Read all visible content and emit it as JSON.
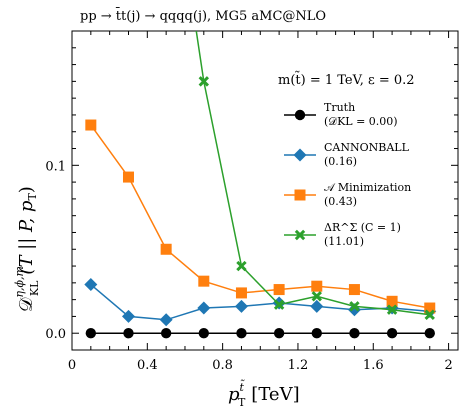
{
  "chart_data": {
    "type": "line",
    "title": "pp → t̄t(j) → qqqq(j), MG5 aMC@NLO",
    "annotation": "m(t̃) = 1 TeV, ε = 0.2",
    "xlabel_main": "p",
    "xlabel_sup": "t̃",
    "xlabel_sub": "T",
    "xlabel_unit": "[TeV]",
    "ylabel_main": "𝒟",
    "ylabel_sup": "η,ϕ,m",
    "ylabel_sub": "KL",
    "ylabel_rest": "(T || P, p",
    "ylabel_rest_sub": "T",
    "ylabel_close": ")",
    "xlim": [
      0,
      2.05
    ],
    "ylim": [
      -0.01,
      0.18
    ],
    "x_ticks": [
      0,
      0.4,
      0.8,
      1.2,
      1.6,
      2
    ],
    "x_tick_labels": [
      "0",
      "0.4",
      "0.8",
      "1.2",
      "1.6",
      "2"
    ],
    "y_ticks": [
      0,
      0.1
    ],
    "y_tick_labels": [
      "0.0",
      "0.1"
    ],
    "legend_position": "right",
    "series": [
      {
        "name": "Truth",
        "name2": "(𝒟KL = 0.00)",
        "color": "#000000",
        "marker": "circle",
        "x": [
          0.1,
          0.3,
          0.5,
          0.7,
          0.9,
          1.1,
          1.3,
          1.5,
          1.7,
          1.9
        ],
        "y": [
          0.0,
          0.0,
          0.0,
          0.0,
          0.0,
          0.0,
          0.0,
          0.0,
          0.0,
          0.0
        ]
      },
      {
        "name": "CANNONBALL",
        "name2": "(0.16)",
        "color": "#1f77b4",
        "marker": "diamond",
        "x": [
          0.1,
          0.3,
          0.5,
          0.7,
          0.9,
          1.1,
          1.3,
          1.5,
          1.7,
          1.9
        ],
        "y": [
          0.029,
          0.01,
          0.008,
          0.015,
          0.016,
          0.018,
          0.016,
          0.014,
          0.015,
          0.013
        ]
      },
      {
        "name": "𝒜 Minimization",
        "name2": "(0.43)",
        "color": "#ff7f0e",
        "marker": "square",
        "x": [
          0.1,
          0.3,
          0.5,
          0.7,
          0.9,
          1.1,
          1.3,
          1.5,
          1.7,
          1.9
        ],
        "y": [
          0.124,
          0.093,
          0.05,
          0.031,
          0.024,
          0.026,
          0.028,
          0.026,
          0.019,
          0.015
        ]
      },
      {
        "name": "ΔR^Σ (C = 1)",
        "name2": "(11.01)",
        "color": "#2ca02c",
        "marker": "x",
        "x": [
          0.7,
          0.9,
          1.1,
          1.3,
          1.5,
          1.7,
          1.9
        ],
        "y": [
          0.15,
          0.04,
          0.017,
          0.022,
          0.016,
          0.014,
          0.011
        ],
        "line_start": {
          "x": 0.66,
          "y": 0.18
        }
      }
    ]
  }
}
